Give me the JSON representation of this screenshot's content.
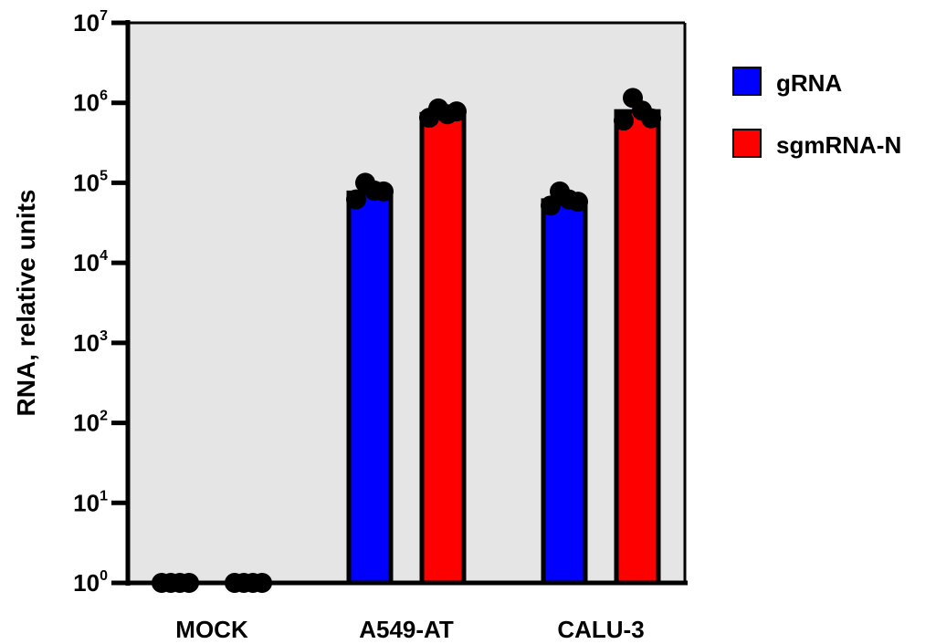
{
  "chart_data": {
    "type": "bar",
    "categories": [
      "MOCK",
      "A549-AT",
      "CALU-3"
    ],
    "ylabel": "RNA, relative units",
    "xlabel": "",
    "yscale": "log",
    "ylim": [
      1,
      10000000
    ],
    "yticks": [
      {
        "value": 1,
        "base": "10",
        "exp": "0"
      },
      {
        "value": 10,
        "base": "10",
        "exp": "1"
      },
      {
        "value": 100,
        "base": "10",
        "exp": "2"
      },
      {
        "value": 1000,
        "base": "10",
        "exp": "3"
      },
      {
        "value": 10000,
        "base": "10",
        "exp": "4"
      },
      {
        "value": 100000,
        "base": "10",
        "exp": "5"
      },
      {
        "value": 1000000,
        "base": "10",
        "exp": "6"
      },
      {
        "value": 10000000,
        "base": "10",
        "exp": "7"
      }
    ],
    "series": [
      {
        "name": "gRNA",
        "color": "#0000ff",
        "values": [
          1,
          75000,
          60000
        ],
        "points": [
          [
            1,
            1,
            1,
            1
          ],
          [
            62000,
            100000,
            80000,
            78000
          ],
          [
            52000,
            78000,
            62000,
            58000
          ]
        ]
      },
      {
        "name": "sgmRNA-N",
        "color": "#ff0000",
        "values": [
          1,
          720000,
          780000
        ],
        "points": [
          [
            1,
            1,
            1,
            1
          ],
          [
            650000,
            850000,
            720000,
            780000
          ],
          [
            600000,
            1150000,
            800000,
            640000
          ]
        ]
      }
    ],
    "legend": "right",
    "grid": false,
    "background": "#e5e5e5"
  }
}
